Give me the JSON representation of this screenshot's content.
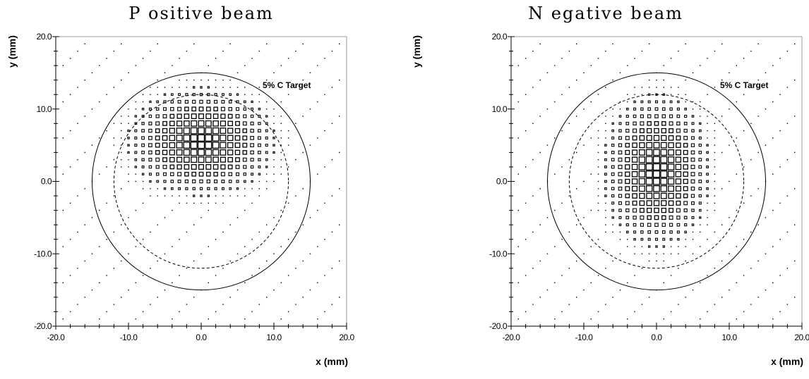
{
  "chart_data": [
    {
      "type": "scatter",
      "title": "P ositive beam",
      "xlabel": "x (mm)",
      "ylabel": "y (mm)",
      "xlim": [
        -20,
        20
      ],
      "ylim": [
        -20,
        20
      ],
      "x_ticks": [
        "-20.0",
        "-10.0",
        "0.0",
        "10.0",
        "20.0"
      ],
      "y_ticks": [
        "20.0",
        "10.0",
        "0.0",
        "-10.0",
        "-20.0"
      ],
      "grid": false,
      "annotation": "5% C Target",
      "circles": [
        {
          "name": "target",
          "radius": 15,
          "style": "solid"
        },
        {
          "name": "inner",
          "radius": 12,
          "style": "dashed"
        }
      ],
      "distribution": {
        "marker": "box",
        "center": [
          0,
          5.5
        ],
        "sigma": [
          4.3,
          3.2
        ],
        "bin": 1
      }
    },
    {
      "type": "scatter",
      "title": "N egative beam",
      "xlabel": "x (mm)",
      "ylabel": "y (mm)",
      "xlim": [
        -20,
        20
      ],
      "ylim": [
        -20,
        20
      ],
      "x_ticks": [
        "-20.0",
        "-10.0",
        "0.0",
        "10.0",
        "20.0"
      ],
      "y_ticks": [
        "20.0",
        "10.0",
        "0.0",
        "-10.0",
        "-20.0"
      ],
      "grid": false,
      "annotation": "5% C Target",
      "circles": [
        {
          "name": "target",
          "radius": 15,
          "style": "solid"
        },
        {
          "name": "inner",
          "radius": 12,
          "style": "dashed"
        }
      ],
      "distribution": {
        "marker": "box",
        "center": [
          0,
          1.5
        ],
        "sigma": [
          3.2,
          4.5
        ],
        "bin": 1
      }
    }
  ]
}
